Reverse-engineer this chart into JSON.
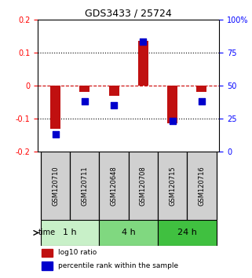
{
  "title": "GDS3433 / 25724",
  "samples": [
    "GSM120710",
    "GSM120711",
    "GSM120648",
    "GSM120708",
    "GSM120715",
    "GSM120716"
  ],
  "log10_ratio": [
    -0.13,
    -0.02,
    -0.03,
    0.135,
    -0.115,
    -0.02
  ],
  "percentile_rank": [
    13,
    38,
    35,
    83,
    23,
    38
  ],
  "ylim_left": [
    -0.2,
    0.2
  ],
  "ylim_right": [
    0,
    100
  ],
  "yticks_left": [
    -0.2,
    -0.1,
    0,
    0.1,
    0.2
  ],
  "yticks_right": [
    0,
    25,
    50,
    75,
    100
  ],
  "ytick_labels_left": [
    "-0.2",
    "-0.1",
    "0",
    "0.1",
    "0.2"
  ],
  "ytick_labels_right": [
    "0",
    "25",
    "50",
    "75",
    "100%"
  ],
  "time_groups": [
    {
      "label": "1 h",
      "samples": [
        "GSM120710",
        "GSM120711"
      ],
      "color": "#c8f0c8"
    },
    {
      "label": "4 h",
      "samples": [
        "GSM120648",
        "GSM120708"
      ],
      "color": "#80d880"
    },
    {
      "label": "24 h",
      "samples": [
        "GSM120715",
        "GSM120716"
      ],
      "color": "#40c040"
    }
  ],
  "bar_color": "#c01010",
  "dot_color": "#0000cc",
  "hline_color": "#cc0000",
  "grid_color": "#000000",
  "bg_color": "#ffffff",
  "legend_red_label": "log10 ratio",
  "legend_blue_label": "percentile rank within the sample",
  "bar_width": 0.35,
  "dot_size": 40
}
